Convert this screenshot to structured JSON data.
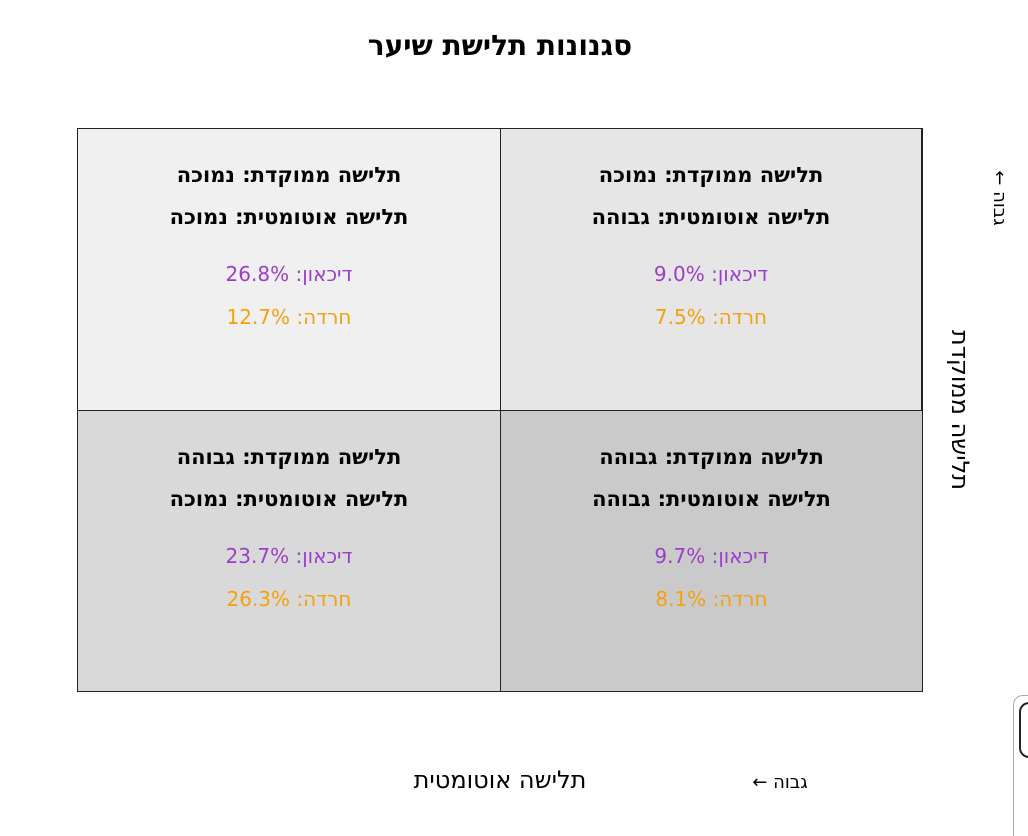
{
  "title": "סגנונות תלישת שיער",
  "y_axis": {
    "label": "תלישה ממוקדת",
    "high_label": "גבוה ←"
  },
  "x_axis": {
    "label": "תלישה אוטומטית",
    "high_label": "גבוה ←"
  },
  "quadrants": {
    "top_left": {
      "focused": "תלישה ממוקדת: נמוכה",
      "automatic": "תלישה אוטומטית: נמוכה",
      "depression": "דיכאון: 26.8%",
      "anxiety": "חרדה: 12.7%"
    },
    "top_right": {
      "focused": "תלישה ממוקדת: נמוכה",
      "automatic": "תלישה אוטומטית: גבוהה",
      "depression": "דיכאון: 9.0%",
      "anxiety": "חרדה: 7.5%"
    },
    "bottom_left": {
      "focused": "תלישה ממוקדת: גבוהה",
      "automatic": "תלישה אוטומטית: נמוכה",
      "depression": "דיכאון: 23.7%",
      "anxiety": "חרדה: 26.3%"
    },
    "bottom_right": {
      "focused": "תלישה ממוקדת: גבוהה",
      "automatic": "תלישה אוטומטית: גבוהה",
      "depression": "דיכאון: 9.7%",
      "anxiety": "חרדה: 8.1%"
    }
  },
  "colors": {
    "depression": "#9b3fc9",
    "anxiety": "#f5a00f"
  }
}
